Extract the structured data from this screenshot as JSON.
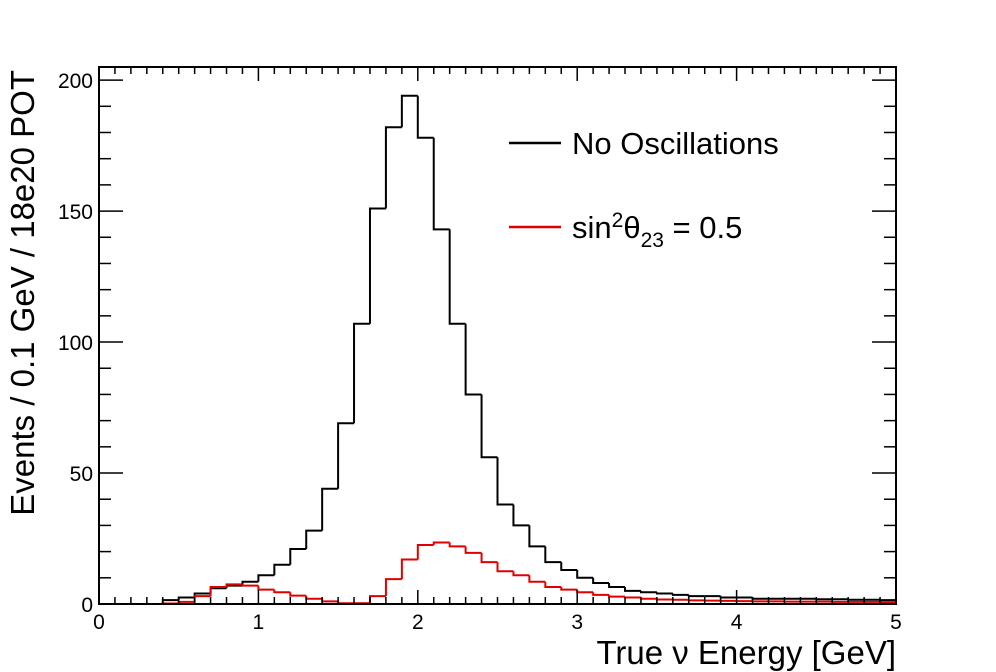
{
  "chart_data": {
    "type": "line",
    "title": "",
    "xlabel": "True ν Energy [GeV]",
    "ylabel": "Events / 0.1 GeV / 18e20 POT",
    "xlim": [
      0,
      5
    ],
    "ylim": [
      0,
      205
    ],
    "xticks": [
      "0",
      "1",
      "2",
      "3",
      "4",
      "5"
    ],
    "yticks": [
      "0",
      "50",
      "100",
      "150",
      "200"
    ],
    "grid": false,
    "legend_position": "top-right",
    "bin_edges": [
      0,
      0.1,
      0.2,
      0.3,
      0.4,
      0.5,
      0.6,
      0.7,
      0.8,
      0.9,
      1.0,
      1.1,
      1.2,
      1.3,
      1.4,
      1.5,
      1.6,
      1.7,
      1.8,
      1.9,
      2.0,
      2.1,
      2.2,
      2.3,
      2.4,
      2.5,
      2.6,
      2.7,
      2.8,
      2.9,
      3.0,
      3.1,
      3.2,
      3.3,
      3.4,
      3.5,
      3.6,
      3.7,
      3.8,
      3.9,
      4.0,
      4.1,
      4.2,
      4.3,
      4.4,
      4.5,
      4.6,
      4.7,
      4.8,
      4.9,
      5.0
    ],
    "series": [
      {
        "name": "No Oscillations",
        "color": "#000000",
        "values": [
          0,
          0,
          0,
          0,
          1.5,
          2.5,
          4,
          6,
          7,
          8.5,
          11,
          15,
          21,
          28,
          44,
          69,
          107,
          151,
          182,
          194,
          178,
          143,
          107,
          80,
          56,
          38,
          30,
          22,
          16,
          13,
          10,
          8,
          6.5,
          5,
          4.5,
          4,
          3.5,
          3,
          3,
          2.5,
          2.5,
          2,
          2,
          2,
          2,
          1.8,
          1.8,
          1.6,
          1.6,
          1.5
        ]
      },
      {
        "name": "sin²θ₂₃ = 0.5",
        "color": "#e00000",
        "values": [
          0,
          0,
          0,
          0,
          0.2,
          0.8,
          3,
          6.5,
          7.5,
          7,
          5.5,
          4.5,
          3.2,
          2,
          1,
          0.3,
          0.3,
          3,
          9.5,
          17,
          22.5,
          23.5,
          22,
          19.5,
          16,
          12.5,
          11,
          8.5,
          6.5,
          5.5,
          4.5,
          3.5,
          2.8,
          2.5,
          2,
          1.7,
          1.6,
          1.4,
          1.3,
          1.2,
          1.1,
          1,
          1,
          0.9,
          0.9,
          0.9,
          0.8,
          0.8,
          0.8,
          0.7
        ]
      }
    ],
    "legend": {
      "entries": [
        {
          "prefix": "No Oscillations",
          "sup": "",
          "theta": "",
          "sub": "",
          "suffix": ""
        },
        {
          "prefix": "sin",
          "sup": "2",
          "theta": "θ",
          "sub": "23",
          "suffix": " = 0.5"
        }
      ]
    }
  }
}
